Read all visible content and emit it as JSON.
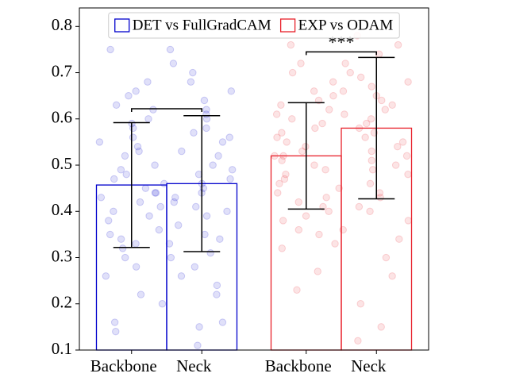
{
  "chart_data": {
    "type": "bar",
    "categories": [
      "Backbone",
      "Neck"
    ],
    "series": [
      {
        "name": "DET vs FullGradCAM",
        "color": "#0000cc",
        "values": [
          0.457,
          0.46
        ],
        "errors": [
          0.135,
          0.147
        ],
        "points": [
          [
            0.75,
            0.68,
            0.66,
            0.65,
            0.63,
            0.62,
            0.6,
            0.59,
            0.58,
            0.56,
            0.55,
            0.54,
            0.53,
            0.52,
            0.5,
            0.49,
            0.48,
            0.47,
            0.46,
            0.45,
            0.44,
            0.44,
            0.43,
            0.42,
            0.41,
            0.4,
            0.39,
            0.38,
            0.36,
            0.35,
            0.34,
            0.33,
            0.32,
            0.3,
            0.28,
            0.26,
            0.22,
            0.2,
            0.16,
            0.14
          ],
          [
            0.75,
            0.72,
            0.7,
            0.68,
            0.66,
            0.64,
            0.62,
            0.61,
            0.6,
            0.58,
            0.57,
            0.56,
            0.55,
            0.53,
            0.52,
            0.5,
            0.49,
            0.48,
            0.47,
            0.46,
            0.45,
            0.44,
            0.43,
            0.42,
            0.41,
            0.4,
            0.39,
            0.37,
            0.35,
            0.34,
            0.33,
            0.31,
            0.3,
            0.28,
            0.26,
            0.24,
            0.22,
            0.16,
            0.15,
            0.11
          ]
        ]
      },
      {
        "name": "EXP vs ODAM",
        "color": "#e8202a",
        "values": [
          0.52,
          0.58
        ],
        "errors": [
          0.115,
          0.153
        ],
        "points": [
          [
            0.76,
            0.72,
            0.7,
            0.68,
            0.66,
            0.65,
            0.64,
            0.63,
            0.62,
            0.61,
            0.6,
            0.59,
            0.58,
            0.57,
            0.56,
            0.55,
            0.54,
            0.53,
            0.52,
            0.52,
            0.51,
            0.5,
            0.49,
            0.48,
            0.47,
            0.46,
            0.45,
            0.44,
            0.43,
            0.42,
            0.41,
            0.4,
            0.39,
            0.38,
            0.36,
            0.35,
            0.33,
            0.32,
            0.27,
            0.23
          ],
          [
            0.78,
            0.76,
            0.74,
            0.72,
            0.7,
            0.69,
            0.68,
            0.67,
            0.66,
            0.65,
            0.64,
            0.63,
            0.62,
            0.61,
            0.6,
            0.59,
            0.58,
            0.57,
            0.56,
            0.55,
            0.54,
            0.53,
            0.52,
            0.51,
            0.5,
            0.49,
            0.48,
            0.46,
            0.44,
            0.43,
            0.41,
            0.4,
            0.38,
            0.36,
            0.34,
            0.3,
            0.26,
            0.2,
            0.15,
            0.12
          ]
        ]
      }
    ],
    "brackets": [
      {
        "series": 0,
        "y": 0.622
      },
      {
        "series": 1,
        "y": 0.745,
        "label": "***"
      }
    ],
    "ylim": [
      0.1,
      0.84
    ],
    "yticks": [
      0.1,
      0.2,
      0.3,
      0.4,
      0.5,
      0.6,
      0.7,
      0.8
    ],
    "legend": "upper center"
  }
}
